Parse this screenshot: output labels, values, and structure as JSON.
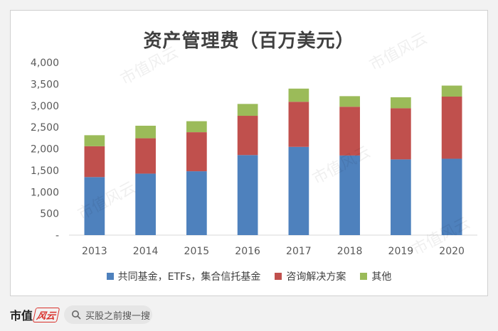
{
  "chart_data": {
    "type": "bar",
    "stacked": true,
    "title": "资产管理费（百万美元）",
    "categories": [
      "2013",
      "2014",
      "2015",
      "2016",
      "2017",
      "2018",
      "2019",
      "2020"
    ],
    "series": [
      {
        "name": "共同基金，ETFs，集合信托基金",
        "color": "#4e81bd",
        "values": [
          1345,
          1425,
          1480,
          1855,
          2045,
          1845,
          1755,
          1770
        ]
      },
      {
        "name": "咨询解决方案",
        "color": "#c0504d",
        "values": [
          715,
          820,
          905,
          910,
          1045,
          1130,
          1185,
          1440
        ]
      },
      {
        "name": "其他",
        "color": "#9bbb59",
        "values": [
          255,
          290,
          255,
          275,
          305,
          245,
          255,
          255
        ]
      }
    ],
    "ylim": [
      0,
      4000
    ],
    "yticks": [
      0,
      500,
      1000,
      1500,
      2000,
      2500,
      3000,
      3500,
      4000
    ],
    "ytick_labels": [
      "-",
      "500",
      "1,000",
      "1,500",
      "2,000",
      "2,500",
      "3,000",
      "3,500",
      "4,000"
    ],
    "grid": false,
    "legend_position": "bottom"
  },
  "watermark_text": "市值风云",
  "footer": {
    "brand_name": "市值",
    "brand_stamp": "风云",
    "search_placeholder": "买股之前搜一搜"
  }
}
